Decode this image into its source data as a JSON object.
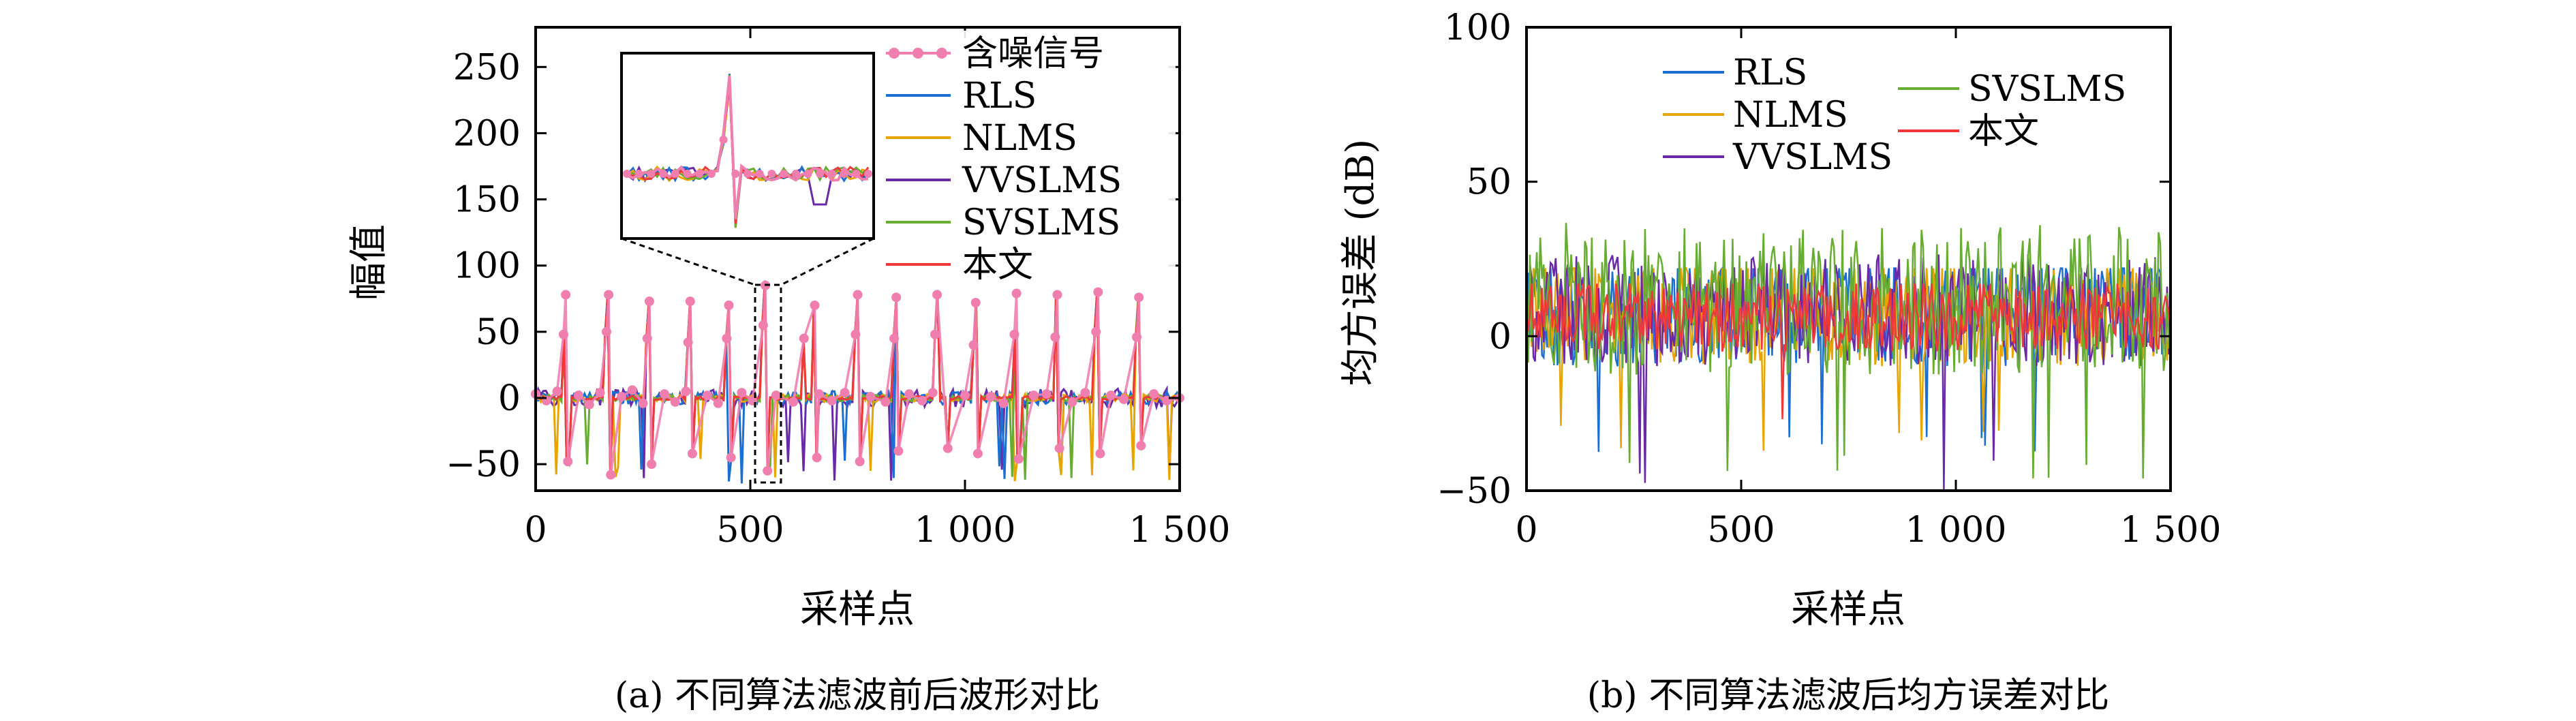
{
  "chart_data": [
    {
      "type": "line",
      "caption": "(a) 不同算法滤波前后波形对比",
      "xlabel": "采样点",
      "ylabel": "幅值",
      "xlim": [
        0,
        1500
      ],
      "ylim": [
        -70,
        280
      ],
      "xticks": [
        0,
        500,
        1000,
        1500
      ],
      "xtick_labels": [
        "0",
        "500",
        "1 000",
        "1 500"
      ],
      "yticks": [
        -50,
        0,
        50,
        100,
        150,
        200,
        250
      ],
      "ytick_labels": [
        "−50",
        "0",
        "50",
        "100",
        "150",
        "200",
        "250"
      ],
      "legend_position": "top-right",
      "series": [
        {
          "name": "含噪信号",
          "color": "#f07fb0",
          "marker": "circle",
          "x": [
            0,
            25,
            50,
            65,
            70,
            75,
            100,
            125,
            150,
            165,
            170,
            175,
            200,
            225,
            250,
            260,
            265,
            270,
            300,
            325,
            350,
            355,
            360,
            365,
            400,
            425,
            445,
            450,
            455,
            480,
            505,
            530,
            535,
            540,
            560,
            600,
            625,
            650,
            655,
            660,
            690,
            720,
            745,
            750,
            755,
            780,
            815,
            835,
            840,
            845,
            870,
            900,
            925,
            930,
            935,
            960,
            1000,
            1020,
            1025,
            1030,
            1060,
            1090,
            1115,
            1120,
            1125,
            1160,
            1190,
            1210,
            1215,
            1220,
            1250,
            1280,
            1305,
            1310,
            1315,
            1340,
            1370,
            1400,
            1405,
            1410,
            1440,
            1470,
            1500
          ],
          "y": [
            3,
            -2,
            5,
            48,
            78,
            -48,
            2,
            -5,
            4,
            50,
            78,
            -58,
            1,
            6,
            -4,
            45,
            73,
            -50,
            3,
            -3,
            5,
            42,
            73,
            -42,
            2,
            -4,
            45,
            70,
            -45,
            4,
            -2,
            55,
            85,
            -55,
            2,
            -3,
            45,
            70,
            -45,
            3,
            -2,
            4,
            48,
            78,
            -48,
            1,
            -3,
            45,
            76,
            -40,
            3,
            -2,
            4,
            48,
            78,
            -38,
            2,
            40,
            72,
            -42,
            1,
            -4,
            48,
            79,
            -46,
            2,
            3,
            46,
            78,
            -38,
            -3,
            4,
            50,
            80,
            -42,
            2,
            -1,
            46,
            76,
            -36,
            3,
            -2,
            0
          ]
        },
        {
          "name": "RLS",
          "color": "#1a6fd1"
        },
        {
          "name": "NLMS",
          "color": "#e8a400"
        },
        {
          "name": "VVSLMS",
          "color": "#6a2aa8"
        },
        {
          "name": "SVSLMS",
          "color": "#67ad32"
        },
        {
          "name": "本文",
          "color": "#f0383a"
        }
      ]
    },
    {
      "type": "line",
      "caption": "(b) 不同算法滤波后均方误差对比",
      "xlabel": "采样点",
      "ylabel": "均方误差 (dB)",
      "xlim": [
        0,
        1500
      ],
      "ylim": [
        -50,
        100
      ],
      "xticks": [
        0,
        500,
        1000,
        1500
      ],
      "xtick_labels": [
        "0",
        "500",
        "1 000",
        "1 500"
      ],
      "yticks": [
        -50,
        0,
        50,
        100
      ],
      "ytick_labels": [
        "−50",
        "0",
        "50",
        "100"
      ],
      "legend_position": "top",
      "series": [
        {
          "name": "RLS",
          "color": "#1a6fd1"
        },
        {
          "name": "NLMS",
          "color": "#e8a400"
        },
        {
          "name": "VVSLMS",
          "color": "#6a2aa8"
        },
        {
          "name": "SVSLMS",
          "color": "#67ad32"
        },
        {
          "name": "本文",
          "color": "#f0383a"
        }
      ]
    }
  ]
}
